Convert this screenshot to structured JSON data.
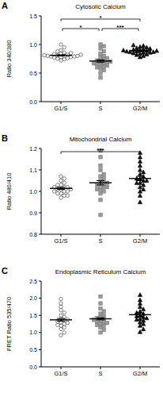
{
  "chart_data": [
    {
      "type": "scatter",
      "panel_label": "A",
      "title": "Cytosolic Calcium",
      "ylabel": "Ratio 340/380",
      "categories": [
        "G1/S",
        "S",
        "G2/M"
      ],
      "colors": [
        "#ffffff",
        "#9a9a9a",
        "#111111"
      ],
      "markers": [
        "circle",
        "square",
        "triangle"
      ],
      "ylim": [
        0,
        1.5
      ],
      "yticks": [
        {
          "value": 0,
          "label": "0.0"
        },
        0.5,
        {
          "value": 1,
          "label": "1.0"
        },
        1.5
      ],
      "points": [
        [
          0.72,
          0.74,
          0.75,
          0.76,
          0.77,
          0.78,
          0.78,
          0.79,
          0.79,
          0.8,
          0.8,
          0.8,
          0.81,
          0.81,
          0.82,
          0.82,
          0.83,
          0.84,
          0.85,
          0.86,
          0.88,
          0.9,
          0.95,
          1.0
        ],
        [
          0.42,
          0.5,
          0.55,
          0.58,
          0.6,
          0.62,
          0.63,
          0.65,
          0.66,
          0.67,
          0.68,
          0.69,
          0.7,
          0.71,
          0.72,
          0.74,
          0.76,
          0.78,
          0.8,
          0.84,
          0.88,
          0.93,
          0.97,
          1.0
        ],
        [
          0.78,
          0.8,
          0.82,
          0.83,
          0.84,
          0.85,
          0.86,
          0.86,
          0.87,
          0.87,
          0.88,
          0.88,
          0.89,
          0.89,
          0.9,
          0.9,
          0.91,
          0.92,
          0.93,
          0.94,
          0.95,
          0.96,
          0.98,
          0.99
        ]
      ],
      "means": [
        0.81,
        0.71,
        0.89
      ],
      "errors": [
        0.01,
        0.02,
        0.01
      ],
      "comparisons": [
        {
          "groups": [
            0,
            2
          ],
          "label": "*"
        },
        {
          "groups": [
            0,
            1
          ],
          "label": "*"
        },
        {
          "groups": [
            1,
            2
          ],
          "label": "***"
        }
      ]
    },
    {
      "type": "scatter",
      "panel_label": "B",
      "title": "Mitochondrial Calcium",
      "ylabel": "Ratio 480/410",
      "categories": [
        "G1/S",
        "S",
        "G2/M"
      ],
      "colors": [
        "#ffffff",
        "#9a9a9a",
        "#111111"
      ],
      "markers": [
        "circle",
        "square",
        "triangle"
      ],
      "ylim": [
        0.8,
        1.2
      ],
      "yticks": [
        0.8,
        0.9,
        {
          "value": 1,
          "label": "1.0"
        },
        1.1,
        1.2
      ],
      "points": [
        [
          0.97,
          0.98,
          0.99,
          0.99,
          1.0,
          1.0,
          1.0,
          1.01,
          1.01,
          1.01,
          1.02,
          1.02,
          1.02,
          1.03,
          1.03,
          1.04,
          1.05,
          1.06,
          1.07,
          0.98
        ],
        [
          0.89,
          0.96,
          0.99,
          1.0,
          1.01,
          1.01,
          1.02,
          1.02,
          1.03,
          1.03,
          1.04,
          1.04,
          1.05,
          1.06,
          1.07,
          1.08,
          1.1,
          1.12,
          1.16,
          1.19
        ],
        [
          0.95,
          0.98,
          1.0,
          1.01,
          1.02,
          1.03,
          1.04,
          1.04,
          1.05,
          1.05,
          1.06,
          1.06,
          1.07,
          1.08,
          1.09,
          1.1,
          1.12,
          1.14,
          1.16,
          1.18
        ]
      ],
      "means": [
        1.014,
        1.04,
        1.06
      ],
      "errors": [
        0.005,
        0.01,
        0.01
      ],
      "comparisons": [
        {
          "groups": [
            0,
            2
          ],
          "label": "***"
        }
      ]
    },
    {
      "type": "scatter",
      "panel_label": "C",
      "title": "Endoplasmic Reticulum Calcium",
      "ylabel": "FRET Ratio 535/470",
      "categories": [
        "G1/S",
        "S",
        "G2/M"
      ],
      "colors": [
        "#ffffff",
        "#9a9a9a",
        "#111111"
      ],
      "markers": [
        "circle",
        "square",
        "triangle"
      ],
      "ylim": [
        0,
        2.5
      ],
      "yticks": [
        {
          "value": 0,
          "label": "0.0"
        },
        0.5,
        {
          "value": 1,
          "label": "1.0"
        },
        1.5,
        {
          "value": 2,
          "label": "2.0"
        },
        2.5
      ],
      "points": [
        [
          0.92,
          1.0,
          1.1,
          1.15,
          1.2,
          1.22,
          1.25,
          1.28,
          1.3,
          1.32,
          1.35,
          1.38,
          1.4,
          1.45,
          1.5,
          1.58,
          1.65,
          1.75,
          1.85,
          1.98
        ],
        [
          1.0,
          1.08,
          1.15,
          1.2,
          1.22,
          1.25,
          1.28,
          1.3,
          1.32,
          1.35,
          1.37,
          1.4,
          1.42,
          1.45,
          1.5,
          1.55,
          1.62,
          1.7,
          1.85,
          2.05
        ],
        [
          1.02,
          1.1,
          1.2,
          1.25,
          1.3,
          1.35,
          1.38,
          1.4,
          1.42,
          1.45,
          1.48,
          1.5,
          1.55,
          1.58,
          1.62,
          1.68,
          1.75,
          1.85,
          1.95,
          2.1
        ]
      ],
      "means": [
        1.37,
        1.4,
        1.52
      ],
      "errors": [
        0.04,
        0.03,
        0.05
      ],
      "comparisons": []
    }
  ]
}
